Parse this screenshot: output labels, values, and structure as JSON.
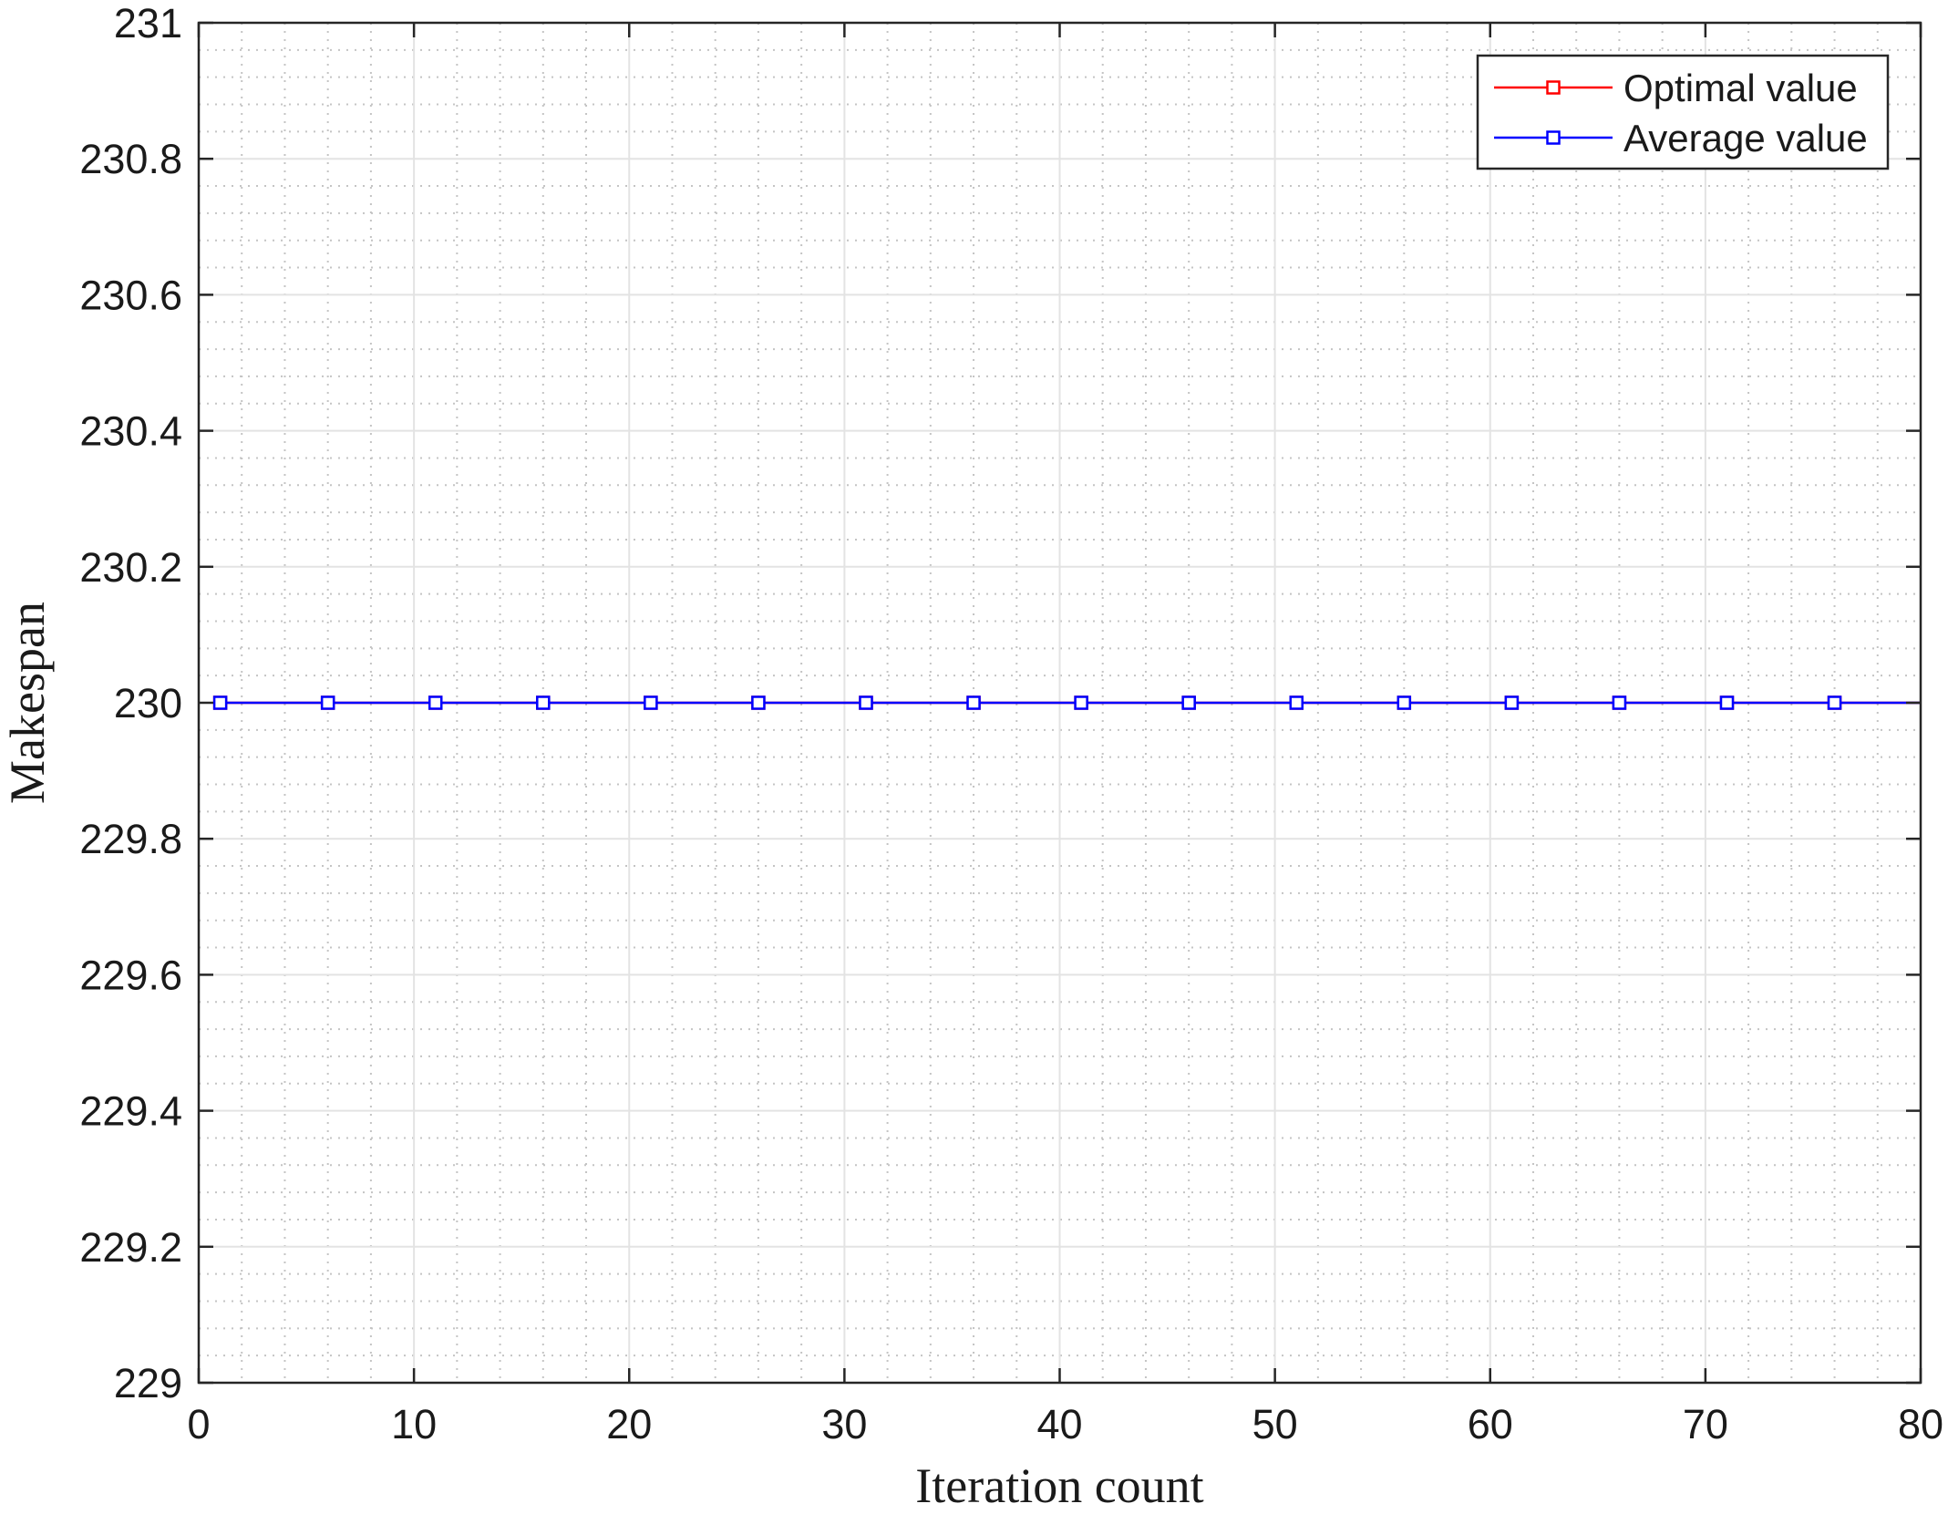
{
  "chart_data": {
    "type": "line",
    "title": "",
    "xlabel": "Iteration count",
    "ylabel": "Makespan",
    "xlim": [
      0,
      80
    ],
    "ylim": [
      229,
      231
    ],
    "xticks": [
      0,
      10,
      20,
      30,
      40,
      50,
      60,
      70,
      80
    ],
    "xtick_labels": [
      "0",
      "10",
      "20",
      "30",
      "40",
      "50",
      "60",
      "70",
      "80"
    ],
    "yticks": [
      229,
      229.2,
      229.4,
      229.6,
      229.8,
      230,
      230.2,
      230.4,
      230.6,
      230.8,
      231
    ],
    "ytick_labels": [
      "229",
      "229.2",
      "229.4",
      "229.6",
      "229.8",
      "230",
      "230.2",
      "230.4",
      "230.6",
      "230.8",
      "231"
    ],
    "grid": true,
    "minor_grid": true,
    "legend_position": "top-right",
    "series": [
      {
        "name": "Optimal value",
        "color": "#ff0000",
        "marker": "square",
        "line_x": [
          1,
          80
        ],
        "line_y": [
          230,
          230
        ],
        "marker_x": [
          1,
          6,
          11,
          16,
          21,
          26,
          31,
          36,
          41,
          46,
          51,
          56,
          61,
          66,
          71,
          76
        ],
        "marker_y": [
          230,
          230,
          230,
          230,
          230,
          230,
          230,
          230,
          230,
          230,
          230,
          230,
          230,
          230,
          230,
          230
        ]
      },
      {
        "name": "Average value",
        "color": "#0000ff",
        "marker": "square",
        "line_x": [
          1,
          80
        ],
        "line_y": [
          230,
          230
        ],
        "marker_x": [
          1,
          6,
          11,
          16,
          21,
          26,
          31,
          36,
          41,
          46,
          51,
          56,
          61,
          66,
          71,
          76
        ],
        "marker_y": [
          230,
          230,
          230,
          230,
          230,
          230,
          230,
          230,
          230,
          230,
          230,
          230,
          230,
          230,
          230,
          230
        ]
      }
    ]
  }
}
